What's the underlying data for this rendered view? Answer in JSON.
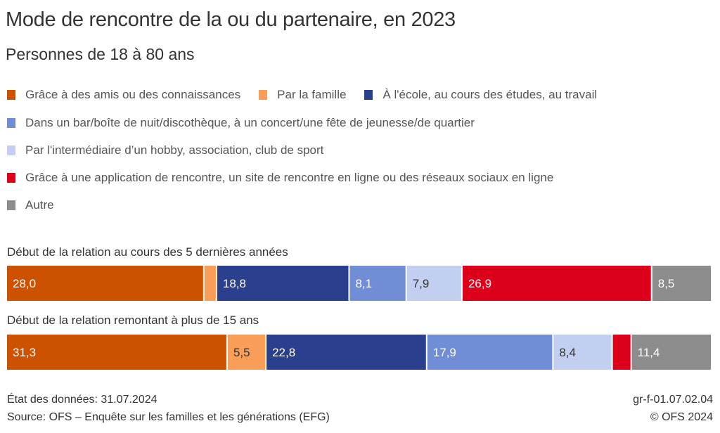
{
  "title": "Mode de rencontre de la ou du partenaire, en 2023",
  "subtitle": "Personnes de 18 à 80 ans",
  "footer": {
    "data_state": "État des données: 31.07.2024",
    "source": "Source: OFS – Enquête sur les familles et les générations (EFG)",
    "code": "gr-f-01.07.02.04",
    "copyright": "© OFS 2024"
  },
  "chart_data": {
    "type": "bar",
    "orientation": "horizontal-stacked-100",
    "title": "Mode de rencontre de la ou du partenaire, en 2023",
    "subtitle": "Personnes de 18 à 80 ans",
    "unit": "%",
    "legend_position": "top",
    "categories": [
      "Début de la relation au cours des 5 dernières années",
      "Début de la relation remontant à plus de 15 ans"
    ],
    "series": [
      {
        "name": "Grâce à des amis ou des connaissances",
        "color": "#cc5200",
        "label_color": "#ffffff",
        "values": [
          28.0,
          31.3
        ],
        "labels": [
          "28,0",
          "31,3"
        ]
      },
      {
        "name": "Par la famille",
        "color": "#f99e59",
        "label_color": "#333333",
        "values": [
          1.8,
          5.5
        ],
        "labels": [
          "",
          "5,5"
        ]
      },
      {
        "name": "À l'école, au cours des études, au travail",
        "color": "#2a3f8d",
        "label_color": "#ffffff",
        "values": [
          18.8,
          22.8
        ],
        "labels": [
          "18,8",
          "22,8"
        ]
      },
      {
        "name": "Dans un bar/boîte de nuit/discothèque, à un concert/une fête de jeunesse/de quartier",
        "color": "#718dd6",
        "label_color": "#ffffff",
        "values": [
          8.1,
          17.9
        ],
        "labels": [
          "8,1",
          "17,9"
        ]
      },
      {
        "name": "Par l'intermédiaire d’un hobby, association, club de sport",
        "color": "#c3cff0",
        "label_color": "#333333",
        "values": [
          7.9,
          8.4
        ],
        "labels": [
          "7,9",
          "8,4"
        ]
      },
      {
        "name": "Grâce à une application de rencontre, un site de rencontre en ligne ou des réseaux sociaux en ligne",
        "color": "#dd001a",
        "label_color": "#ffffff",
        "values": [
          26.9,
          2.7
        ],
        "labels": [
          "26,9",
          ""
        ]
      },
      {
        "name": "Autre",
        "color": "#8c8c8c",
        "label_color": "#ffffff",
        "values": [
          8.5,
          11.4
        ],
        "labels": [
          "8,5",
          "11,4"
        ]
      }
    ],
    "xlim": [
      0,
      100
    ],
    "grid": false
  }
}
